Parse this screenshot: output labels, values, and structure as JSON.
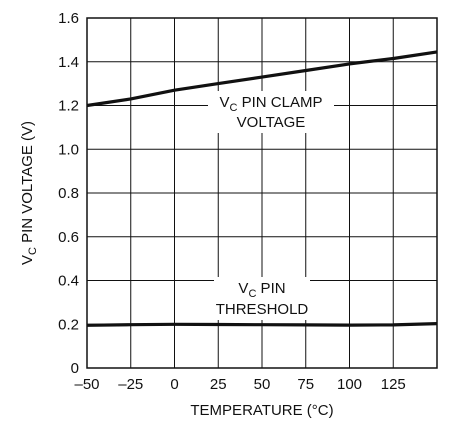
{
  "chart_data": {
    "type": "line",
    "title": "",
    "xlabel": "TEMPERATURE (°C)",
    "ylabel_prefix": "V",
    "ylabel_sub": "C",
    "ylabel_rest": " PIN VOLTAGE (V)",
    "xlim": [
      -50,
      150
    ],
    "ylim": [
      0,
      1.6
    ],
    "grid": true,
    "x_ticks": [
      -50,
      -25,
      0,
      25,
      50,
      75,
      100,
      125
    ],
    "x_tick_labels": [
      "–50",
      "–25",
      "0",
      "25",
      "50",
      "75",
      "100",
      "125"
    ],
    "y_ticks": [
      0,
      0.2,
      0.4,
      0.6,
      0.8,
      1.0,
      1.2,
      1.4,
      1.6
    ],
    "y_tick_labels": [
      "0",
      "0.2",
      "0.4",
      "0.6",
      "0.8",
      "1.0",
      "1.2",
      "1.4",
      "1.6"
    ],
    "series": [
      {
        "x": [
          -50,
          -25,
          0,
          25,
          50,
          75,
          100,
          125,
          150
        ],
        "y": [
          1.2,
          1.23,
          1.27,
          1.3,
          1.33,
          1.36,
          1.39,
          1.415,
          1.445
        ],
        "color": "#111111"
      },
      {
        "x": [
          -50,
          -25,
          0,
          25,
          50,
          75,
          100,
          125,
          150
        ],
        "y": [
          0.195,
          0.198,
          0.2,
          0.199,
          0.198,
          0.197,
          0.196,
          0.197,
          0.203
        ],
        "color": "#111111"
      }
    ],
    "annotations": [
      {
        "prefix": "V",
        "sub": "C",
        "line1_rest": " PIN CLAMP",
        "line2": "VOLTAGE"
      },
      {
        "prefix": "V",
        "sub": "C",
        "line1_rest": " PIN",
        "line2": "THRESHOLD"
      }
    ]
  }
}
